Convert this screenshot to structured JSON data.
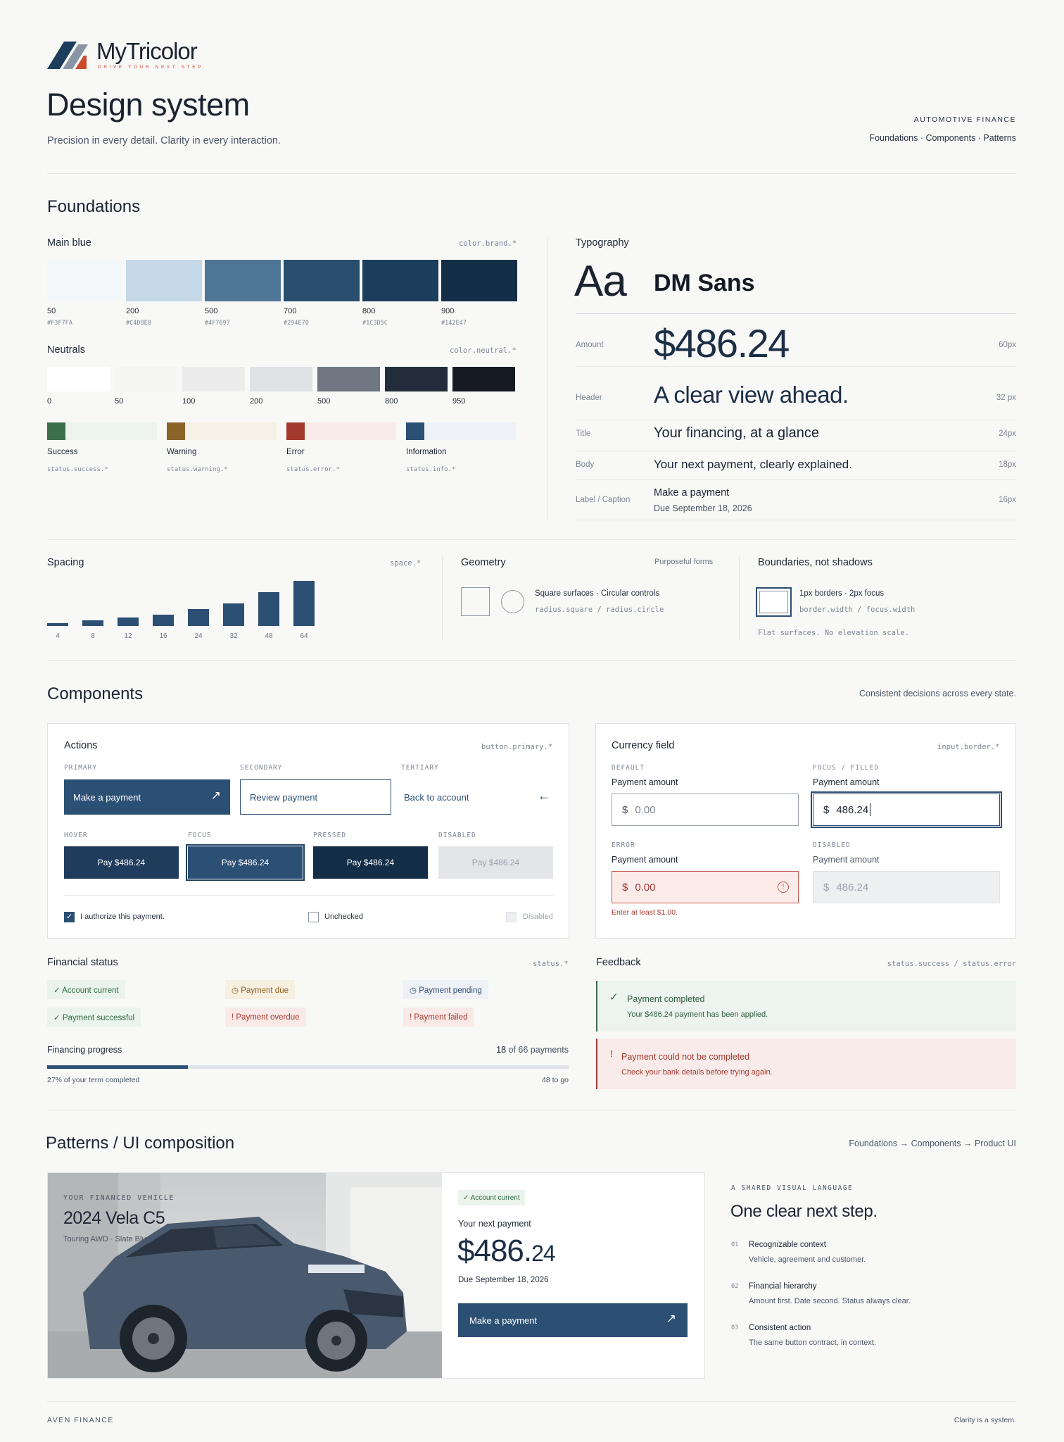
{
  "header": {
    "logo_text": "MyTricolor",
    "logo_tagline": "DRIVE YOUR NEXT STEP",
    "title": "Design system",
    "subtitle": "Precision in every detail. Clarity in every interaction.",
    "kicker": "AUTOMOTIVE FINANCE",
    "nav": "Foundations · Components · Patterns"
  },
  "foundations": {
    "title": "Foundations",
    "main_blue": {
      "label": "Main blue",
      "token": "color.brand.*",
      "swatches": [
        {
          "name": "50",
          "hex": "#F3F7FA"
        },
        {
          "name": "200",
          "hex": "#C4D8E8"
        },
        {
          "name": "500",
          "hex": "#4F7697"
        },
        {
          "name": "700",
          "hex": "#294E70"
        },
        {
          "name": "800",
          "hex": "#1C3D5C"
        },
        {
          "name": "900",
          "hex": "#142E47"
        }
      ]
    },
    "neutrals": {
      "label": "Neutrals",
      "token": "color.neutral.*",
      "swatches": [
        {
          "name": "0",
          "color": "#ffffff"
        },
        {
          "name": "50",
          "color": "#f5f5f4"
        },
        {
          "name": "100",
          "color": "#ececec"
        },
        {
          "name": "200",
          "color": "#dfe2e5"
        },
        {
          "name": "500",
          "color": "#6e7782"
        },
        {
          "name": "800",
          "color": "#232d3b"
        },
        {
          "name": "950",
          "color": "#161b23"
        }
      ]
    },
    "status": [
      {
        "name": "Success",
        "token": "status.success.*",
        "strong": "#3d6e4c",
        "soft": "#edf3ee"
      },
      {
        "name": "Warning",
        "token": "status.warning.*",
        "strong": "#8a6328",
        "soft": "#f6f1e6"
      },
      {
        "name": "Error",
        "token": "status.error.*",
        "strong": "#a5392f",
        "soft": "#f8ebe9"
      },
      {
        "name": "Information",
        "token": "status.info.*",
        "strong": "#2c4f74",
        "soft": "#eef2f6"
      }
    ],
    "typography": {
      "label": "Typography",
      "sample": "Aa",
      "family": "DM Sans",
      "rows": [
        {
          "name": "Amount",
          "sample": "$486.24",
          "size": "60px"
        },
        {
          "name": "Header",
          "sample": "A clear view ahead.",
          "size": "32 px"
        },
        {
          "name": "Title",
          "sample": "Your financing, at a glance",
          "size": "24px"
        },
        {
          "name": "Body",
          "sample": "Your next payment, clearly explained.",
          "size": "18px"
        },
        {
          "name": "Label / Caption",
          "sample": "Make a payment",
          "sample2": "Due September 18, 2026",
          "size": "16px"
        }
      ]
    },
    "spacing": {
      "label": "Spacing",
      "token": "space.*",
      "steps": [
        "4",
        "8",
        "12",
        "16",
        "24",
        "32",
        "48",
        "64"
      ]
    },
    "geometry": {
      "label": "Geometry",
      "note": "Purposeful forms",
      "text": "Square surfaces · Circular controls",
      "token": "radius.square / radius.circle"
    },
    "boundaries": {
      "label": "Boundaries, not shadows",
      "text": "1px borders · 2px focus",
      "token": "border.width / focus.width",
      "note": "Flat surfaces. No elevation scale."
    }
  },
  "components": {
    "title": "Components",
    "note": "Consistent decisions across every state.",
    "actions": {
      "label": "Actions",
      "token": "button.primary.*",
      "primary_cap": "PRIMARY",
      "secondary_cap": "SECONDARY",
      "tertiary_cap": "TERTIARY",
      "primary": "Make a payment",
      "secondary": "Review payment",
      "tertiary": "Back to account",
      "states": [
        {
          "cap": "HOVER",
          "label": "Pay $486.24"
        },
        {
          "cap": "FOCUS",
          "label": "Pay $486.24"
        },
        {
          "cap": "PRESSED",
          "label": "Pay $486.24"
        },
        {
          "cap": "DISABLED",
          "label": "Pay $486.24"
        }
      ],
      "checkbox_checked": "I authorize this payment.",
      "checkbox_unchecked": "Unchecked",
      "checkbox_disabled": "Disabled"
    },
    "currency": {
      "label": "Currency field",
      "token": "input.border.*",
      "fields": [
        {
          "cap": "DEFAULT",
          "label": "Payment amount",
          "symbol": "$",
          "value": "0.00"
        },
        {
          "cap": "FOCUS / FILLED",
          "label": "Payment amount",
          "symbol": "$",
          "value": "486.24"
        },
        {
          "cap": "ERROR",
          "label": "Payment amount",
          "symbol": "$",
          "value": "0.00",
          "message": "Enter at least $1.00."
        },
        {
          "cap": "DISABLED",
          "label": "Payment amount",
          "symbol": "$",
          "value": "486.24"
        }
      ]
    },
    "financial_status": {
      "label": "Financial status",
      "token": "status.*",
      "chips": [
        "✓ Account current",
        "◷ Payment due",
        "◷ Payment pending",
        "✓ Payment successful",
        "! Payment overdue",
        "! Payment failed"
      ],
      "progress_label": "Financing progress",
      "progress_count": "18",
      "progress_total": "of 66 payments",
      "progress_value": 0.27,
      "progress_left": "27% of your term completed",
      "progress_right": "48 to go"
    },
    "feedback": {
      "label": "Feedback",
      "token": "status.success / status.error",
      "success_title": "Payment completed",
      "success_body": "Your $486.24 payment has been applied.",
      "error_title": "Payment could not be completed",
      "error_body": "Check your bank details before trying again."
    }
  },
  "patterns": {
    "title": "Patterns / UI composition",
    "note": "Foundations → Components → Product UI",
    "vehicle_cap": "YOUR FINANCED VEHICLE",
    "vehicle_name": "2024 Vela C5",
    "vehicle_trim": "Touring AWD · Slate Blue",
    "status_chip": "✓ Account current",
    "next_label": "Your next payment",
    "amount_main": "$486.",
    "amount_cents": "24",
    "due": "Due September 18, 2026",
    "cta": "Make a payment",
    "kicker": "A SHARED VISUAL LANGUAGE",
    "headline": "One clear next step.",
    "points": [
      {
        "num": "01",
        "title": "Recognizable context",
        "body": "Vehicle, agreement and customer."
      },
      {
        "num": "02",
        "title": "Financial hierarchy",
        "body": "Amount first. Date second. Status always clear."
      },
      {
        "num": "03",
        "title": "Consistent action",
        "body": "The same button contract, in context."
      }
    ]
  },
  "footer": {
    "left": "AVEN FINANCE",
    "right": "Clarity is a system."
  }
}
